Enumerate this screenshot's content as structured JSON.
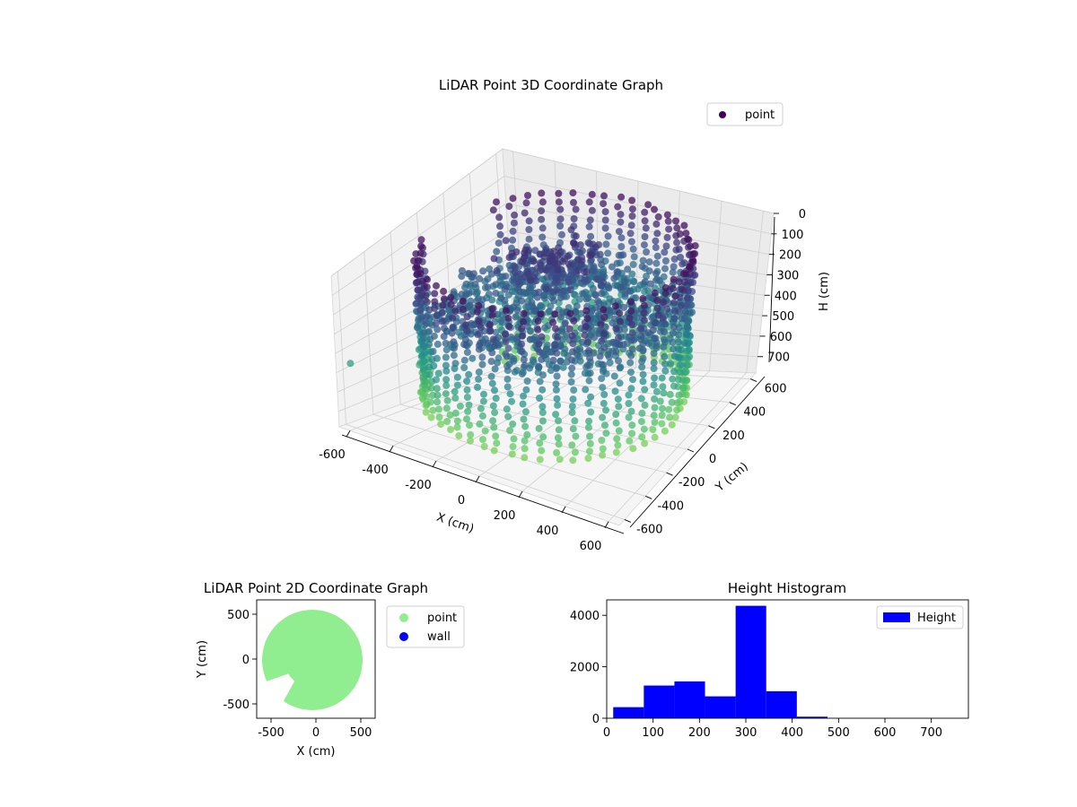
{
  "figure": {
    "colors": {
      "viridis_dark": "#440154",
      "viridis_mid": "#3b528b",
      "viridis_teal": "#21918c",
      "viridis_green": "#5ec962",
      "point_2d": "#90ee90",
      "wall": "#0000ff",
      "hist": "#0000ff",
      "pane": "#f2f2f2",
      "grid": "#cfcfcf"
    }
  },
  "chart_data": [
    {
      "type": "scatter",
      "projection": "3d",
      "title": "LiDAR Point 3D Coordinate Graph",
      "xlabel": "X (cm)",
      "ylabel": "Y (cm)",
      "zlabel": "H (cm)",
      "xticks": [
        -600,
        -400,
        -200,
        0,
        200,
        400,
        600
      ],
      "yticks": [
        -600,
        -400,
        -200,
        0,
        200,
        400,
        600
      ],
      "zticks": [
        0,
        100,
        200,
        300,
        400,
        500,
        600,
        700
      ],
      "xlim": [
        -650,
        650
      ],
      "ylim": [
        -650,
        650
      ],
      "zlim": [
        0,
        780
      ],
      "z_inverted": true,
      "colormap": "viridis",
      "legend": {
        "entries": [
          "point"
        ],
        "placement": "upper right"
      },
      "shape": {
        "wall_radius": 560,
        "wall_height": [
          40,
          700
        ],
        "floor_height": 300,
        "stray_point": [
          -640,
          -560,
          480
        ]
      }
    },
    {
      "type": "scatter",
      "title": "LiDAR Point 2D Coordinate Graph",
      "xlabel": "X (cm)",
      "ylabel": "Y (cm)",
      "xticks": [
        -500,
        0,
        500
      ],
      "yticks": [
        -500,
        0,
        500
      ],
      "xlim": [
        -660,
        660
      ],
      "ylim": [
        -660,
        660
      ],
      "series": [
        {
          "name": "point",
          "color": "#90ee90",
          "radius": 560,
          "center": [
            -40,
            -10
          ]
        },
        {
          "name": "wall",
          "color": "#0000ff",
          "values": []
        }
      ],
      "legend": {
        "entries": [
          "point",
          "wall"
        ],
        "placement": "outside right"
      }
    },
    {
      "type": "bar",
      "subtype": "histogram",
      "title": "Height Histogram",
      "xlabel": "",
      "ylabel": "",
      "xticks": [
        0,
        100,
        200,
        300,
        400,
        500,
        600,
        700
      ],
      "yticks": [
        0,
        2000,
        4000
      ],
      "xlim": [
        0,
        780
      ],
      "ylim": [
        0,
        4600
      ],
      "bin_edges": [
        14,
        80,
        146,
        212,
        278,
        344,
        410,
        476
      ],
      "values": [
        430,
        1270,
        1430,
        850,
        4370,
        1050,
        60
      ],
      "series": [
        {
          "name": "Height"
        }
      ],
      "legend": {
        "entries": [
          "Height"
        ],
        "placement": "upper right"
      }
    }
  ]
}
